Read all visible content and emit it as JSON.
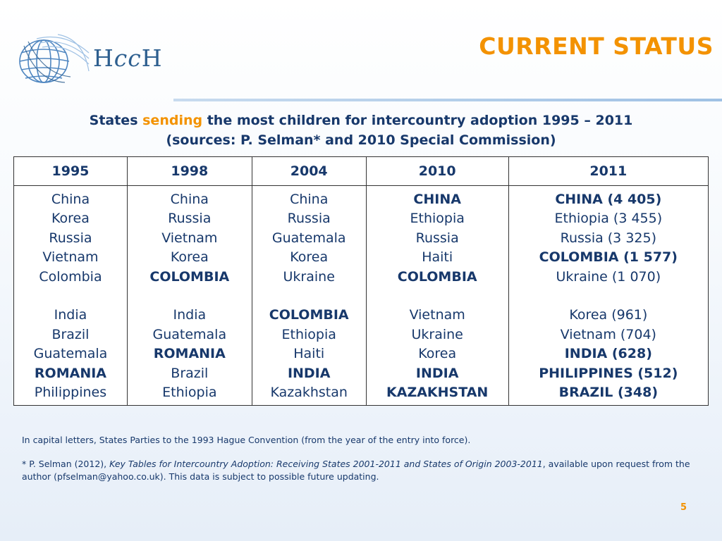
{
  "header": {
    "logo_text_parts": [
      "H",
      "cc",
      "H"
    ],
    "title": "CURRENT STATUS"
  },
  "subtitle": {
    "line1_before": "States ",
    "line1_highlight": "sending",
    "line1_after": " the most children for intercountry adoption 1995 – 2011",
    "line2": "(sources: P. Selman* and 2010 Special Commission)"
  },
  "table": {
    "columns": [
      "1995",
      "1998",
      "2004",
      "2010",
      "2011"
    ],
    "cells": [
      [
        {
          "t": "China",
          "b": false
        },
        {
          "t": "Korea",
          "b": false
        },
        {
          "t": "Russia",
          "b": false
        },
        {
          "t": "Vietnam",
          "b": false
        },
        {
          "t": "Colombia",
          "b": false
        },
        {
          "t": "",
          "b": false
        },
        {
          "t": "India",
          "b": false
        },
        {
          "t": "Brazil",
          "b": false
        },
        {
          "t": "Guatemala",
          "b": false
        },
        {
          "t": "ROMANIA",
          "b": true
        },
        {
          "t": "Philippines",
          "b": false
        }
      ],
      [
        {
          "t": "China",
          "b": false
        },
        {
          "t": "Russia",
          "b": false
        },
        {
          "t": "Vietnam",
          "b": false
        },
        {
          "t": "Korea",
          "b": false
        },
        {
          "t": "COLOMBIA",
          "b": true
        },
        {
          "t": "",
          "b": false
        },
        {
          "t": "India",
          "b": false
        },
        {
          "t": "Guatemala",
          "b": false
        },
        {
          "t": "ROMANIA",
          "b": true
        },
        {
          "t": "Brazil",
          "b": false
        },
        {
          "t": "Ethiopia",
          "b": false
        }
      ],
      [
        {
          "t": "China",
          "b": false
        },
        {
          "t": "Russia",
          "b": false
        },
        {
          "t": "Guatemala",
          "b": false
        },
        {
          "t": "Korea",
          "b": false
        },
        {
          "t": "Ukraine",
          "b": false
        },
        {
          "t": "",
          "b": false
        },
        {
          "t": "COLOMBIA",
          "b": true
        },
        {
          "t": "Ethiopia",
          "b": false
        },
        {
          "t": "Haiti",
          "b": false
        },
        {
          "t": "INDIA",
          "b": true
        },
        {
          "t": "Kazakhstan",
          "b": false
        }
      ],
      [
        {
          "t": "CHINA",
          "b": true
        },
        {
          "t": "Ethiopia",
          "b": false
        },
        {
          "t": "Russia",
          "b": false
        },
        {
          "t": "Haiti",
          "b": false
        },
        {
          "t": "COLOMBIA",
          "b": true
        },
        {
          "t": "",
          "b": false
        },
        {
          "t": "Vietnam",
          "b": false
        },
        {
          "t": "Ukraine",
          "b": false
        },
        {
          "t": "Korea",
          "b": false
        },
        {
          "t": "INDIA",
          "b": true
        },
        {
          "t": "KAZAKHSTAN",
          "b": true
        }
      ],
      [
        {
          "t": "CHINA (4 405)",
          "b": true
        },
        {
          "t": "Ethiopia (3 455)",
          "b": false
        },
        {
          "t": "Russia (3 325)",
          "b": false
        },
        {
          "t": "COLOMBIA (1 577)",
          "b": true
        },
        {
          "t": "Ukraine (1 070)",
          "b": false
        },
        {
          "t": "",
          "b": false
        },
        {
          "t": "Korea (961)",
          "b": false
        },
        {
          "t": "Vietnam (704)",
          "b": false
        },
        {
          "t": "INDIA (628)",
          "b": true
        },
        {
          "t": "PHILIPPINES (512)",
          "b": true
        },
        {
          "t": "BRAZIL (348)",
          "b": true
        }
      ]
    ]
  },
  "notes": {
    "note1": "In capital letters, States Parties to the 1993 Hague Convention (from the year of the entry into force).",
    "note2_before": "* P. Selman (2012), ",
    "note2_italic": "Key Tables for Intercountry Adoption: Receiving States 2001-2011 and States of Origin 2003-2011",
    "note2_after": ", available upon request from the author (pfselman@yahoo.co.uk). This data is subject to possible future updating."
  },
  "page_number": "5",
  "colors": {
    "accent_orange": "#f39200",
    "text_navy": "#17386b",
    "logo_blue": "#2d5f8f"
  },
  "icons": {
    "logo_mark": "globe-icon"
  }
}
